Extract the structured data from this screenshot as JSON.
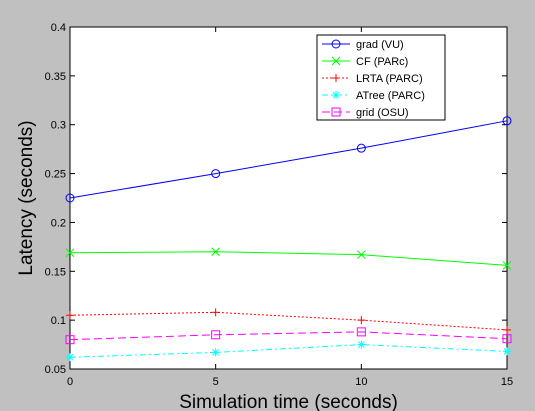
{
  "chart_data": {
    "type": "line",
    "title": "",
    "xlabel": "Simulation time (seconds)",
    "ylabel": "Latency (seconds)",
    "xlim": [
      0,
      15
    ],
    "ylim": [
      0.05,
      0.4
    ],
    "xticks": [
      0,
      5,
      10,
      15
    ],
    "yticks": [
      0.05,
      0.1,
      0.15,
      0.2,
      0.25,
      0.3,
      0.35,
      0.4
    ],
    "xtick_labels": [
      "0",
      "5",
      "10",
      "15"
    ],
    "ytick_labels": [
      "0.05",
      "0.1",
      "0.15",
      "0.2",
      "0.25",
      "0.3",
      "0.35",
      "0.4"
    ],
    "grid": false,
    "legend_position": "top-right",
    "x": [
      0,
      5,
      10,
      15
    ],
    "series": [
      {
        "name": "grad (VU)",
        "values": [
          0.225,
          0.25,
          0.276,
          0.304
        ],
        "color": "#0000ff",
        "dash": "solid",
        "marker": "circle"
      },
      {
        "name": "CF (PARc)",
        "values": [
          0.169,
          0.17,
          0.167,
          0.156
        ],
        "color": "#00ff00",
        "dash": "solid",
        "marker": "x"
      },
      {
        "name": "LRTA (PARC)",
        "values": [
          0.105,
          0.108,
          0.1,
          0.09
        ],
        "color": "#ff0000",
        "dash": "dotted",
        "marker": "plus"
      },
      {
        "name": "ATree (PARC)",
        "values": [
          0.062,
          0.067,
          0.075,
          0.068
        ],
        "color": "#00ffff",
        "dash": "dashdot",
        "marker": "star"
      },
      {
        "name": "grid (OSU)",
        "values": [
          0.08,
          0.085,
          0.088,
          0.081
        ],
        "color": "#ff00ff",
        "dash": "dashed",
        "marker": "square"
      }
    ]
  }
}
